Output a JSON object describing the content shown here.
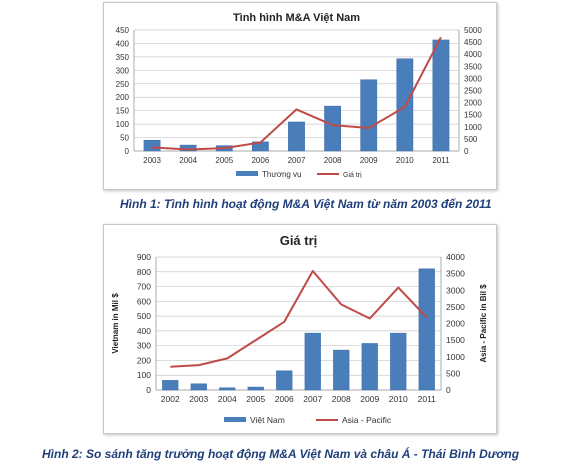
{
  "captions": {
    "fig1": "Hình 1: Tình hình hoạt động M&A Việt Nam từ năm 2003 đến 2011",
    "fig2": "Hình 2: So sánh tăng trưởng hoạt động M&A Việt Nam và châu Á - Thái Bình Dương"
  },
  "colors": {
    "bar": "#4a7ebb",
    "line": "#be4b48",
    "grid": "#c9c9c9",
    "text": "#333333"
  },
  "chart_data": [
    {
      "type": "bar+line",
      "title": "Tình hình M&A Việt Nam",
      "categories": [
        "2003",
        "2004",
        "2005",
        "2006",
        "2007",
        "2008",
        "2009",
        "2010",
        "2011"
      ],
      "ylim_left": [
        0,
        450
      ],
      "yticks_left": [
        "0",
        "50",
        "100",
        "150",
        "200",
        "250",
        "300",
        "350",
        "400",
        "450"
      ],
      "ylim_right": [
        0,
        5000
      ],
      "yticks_right": [
        "0",
        "500",
        "1000",
        "1500",
        "2000",
        "2500",
        "3000",
        "3500",
        "4000",
        "4500",
        "5000"
      ],
      "series": [
        {
          "name": "Thương vụ",
          "kind": "bar",
          "axis": "left",
          "values": [
            40,
            22,
            20,
            34,
            108,
            167,
            265,
            343,
            413
          ]
        },
        {
          "name": "Giá trị",
          "kind": "line",
          "axis": "right",
          "values": [
            150,
            60,
            120,
            350,
            1720,
            1070,
            950,
            1820,
            4700
          ]
        }
      ],
      "grid": true,
      "legend": "bottom"
    },
    {
      "type": "bar+line",
      "title": "Giá trị",
      "categories": [
        "2002",
        "2003",
        "2004",
        "2005",
        "2006",
        "2007",
        "2008",
        "2009",
        "2010",
        "2011"
      ],
      "ylabel_left": "Vietnam in Mil $",
      "ylabel_right": "Asia - Pacific in Bil $",
      "ylim_left": [
        0,
        900
      ],
      "yticks_left": [
        "0",
        "100",
        "200",
        "300",
        "400",
        "500",
        "600",
        "700",
        "800",
        "900"
      ],
      "ylim_right": [
        0,
        4000
      ],
      "yticks_right": [
        "0",
        "500",
        "1000",
        "1500",
        "2000",
        "2500",
        "3000",
        "3500",
        "4000"
      ],
      "series": [
        {
          "name": "Việt Nam",
          "kind": "bar",
          "axis": "left",
          "values": [
            65,
            42,
            15,
            20,
            130,
            385,
            270,
            315,
            385,
            820
          ]
        },
        {
          "name": "Asia - Pacific",
          "kind": "line",
          "axis": "right",
          "values": [
            700,
            750,
            950,
            1500,
            2050,
            3580,
            2570,
            2150,
            3080,
            2180
          ]
        }
      ],
      "grid": true,
      "legend": "bottom"
    }
  ]
}
